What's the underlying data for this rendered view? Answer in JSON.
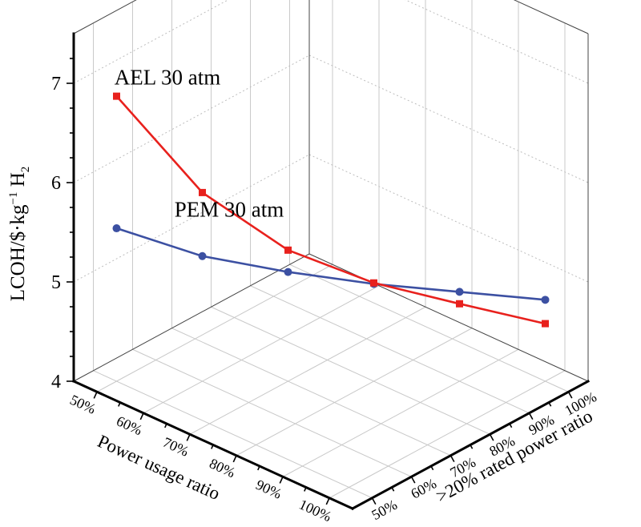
{
  "figure": {
    "background": "#ffffff",
    "axis_color": "#000000",
    "grid_color": "#c9c9c9"
  },
  "chart_data": {
    "type": "line",
    "projection": "3d",
    "grid": true,
    "legend_position": "inline-annotations",
    "categories": [
      "50%",
      "60%",
      "70%",
      "80%",
      "90%",
      "100%"
    ],
    "x_axis": {
      "label": "Power usage ratio",
      "ticks": [
        "50%",
        "60%",
        "70%",
        "80%",
        "90%",
        "100%"
      ],
      "range": [
        45,
        105
      ]
    },
    "y_axis": {
      "label": ">20% rated power ratio",
      "ticks": [
        "50%",
        "60%",
        "70%",
        "80%",
        "90%",
        "100%"
      ],
      "range": [
        45,
        105
      ]
    },
    "z_axis": {
      "label_prefix": "LCOH/$·kg",
      "label_sup": "−1",
      "label_mid": " H",
      "label_sub": "2",
      "ticks": [
        "4",
        "5",
        "6",
        "7"
      ],
      "range": [
        4,
        7.5
      ]
    },
    "series": [
      {
        "name": "AEL 30 atm",
        "color": "#e8211d",
        "marker": "square",
        "values": [
          6.87,
          5.9,
          5.32,
          4.99,
          4.78,
          4.58
        ]
      },
      {
        "name": "PEM 30 atm",
        "color": "#3c50a2",
        "marker": "circle",
        "values": [
          5.54,
          5.26,
          5.1,
          4.98,
          4.9,
          4.82
        ]
      }
    ]
  }
}
